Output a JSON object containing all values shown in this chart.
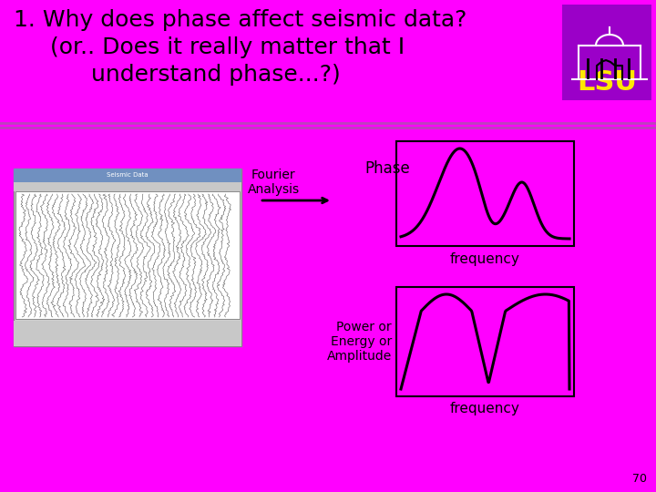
{
  "bg_color": "#FF00FF",
  "title_line1": "1. Why does phase affect seismic data?",
  "title_line2": "(or.. Does it really matter that I",
  "title_line3": "understand phase...?)",
  "title_color": "#000000",
  "title_fontsize": 18,
  "fourier_label": "Fourier\nAnalysis",
  "phase_label": "Phase",
  "freq_label1": "frequency",
  "power_label": "Power or\nEnergy or\nAmplitude",
  "freq_label2": "frequency",
  "box_edge_color": "#000000",
  "curve_color": "#000000",
  "text_color": "#000000",
  "page_number": "70",
  "lsu_box_color": "#9B00C8",
  "lsu_text_color": "#FFE800",
  "stripe_color": "#BB44BB",
  "seismic_bg": "#E8E8E8",
  "seismic_header": "#C0C0C0"
}
